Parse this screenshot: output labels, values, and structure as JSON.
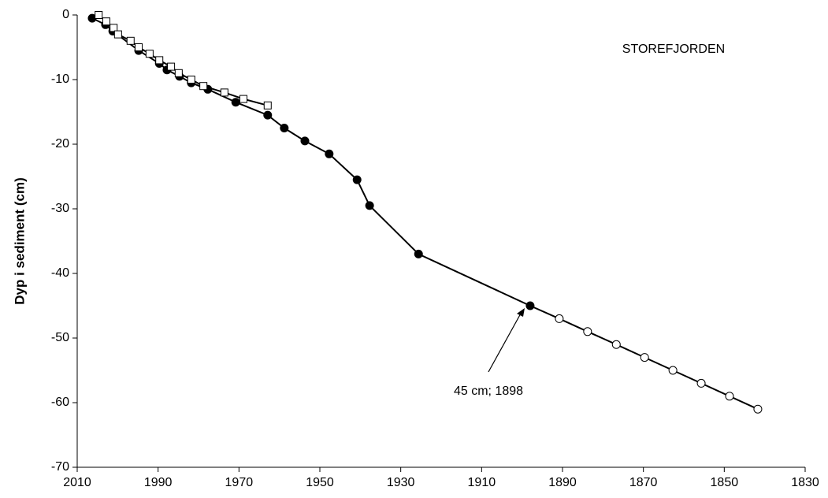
{
  "chart_data": {
    "type": "line",
    "ylabel": "Dyp i sediment (cm)",
    "annotations": [
      "STOREFJORDEN",
      "45 cm; 1898"
    ],
    "xlim": [
      2010,
      1830
    ],
    "xticks": [
      2010,
      1990,
      1970,
      1950,
      1930,
      1910,
      1890,
      1870,
      1850,
      1830
    ],
    "ylim": [
      -70,
      0
    ],
    "yticks": [
      0,
      -10,
      -20,
      -30,
      -40,
      -50,
      -60,
      -70
    ],
    "series": [
      {
        "marker": "circle",
        "color": "#000000",
        "point_colors": [
          "#000000",
          "#000000",
          "#000000",
          "#000000",
          "#000000",
          "#000000",
          "#000000",
          "#000000",
          "#000000",
          "#000000",
          "#000000",
          "#000000",
          "#000000",
          "#000000",
          "#000000",
          "#000000",
          "#000000",
          "#000000",
          "#ffffff",
          "#ffffff",
          "#ffffff",
          "#ffffff",
          "#ffffff",
          "#ffffff",
          "#ffffff",
          "#ffffff"
        ],
        "x": [
          2006.3,
          2003,
          2001.2,
          1994.8,
          1989.7,
          1987.8,
          1984.7,
          1981.8,
          1977.7,
          1970.8,
          1962.9,
          1958.8,
          1953.7,
          1947.7,
          1940.8,
          1937.7,
          1925.6,
          1898,
          1890.8,
          1883.8,
          1876.7,
          1869.7,
          1862.7,
          1855.7,
          1848.7,
          1841.7
        ],
        "values": [
          -0.5,
          -1.5,
          -2.5,
          -5.5,
          -7.5,
          -8.5,
          -9.5,
          -10.5,
          -11.5,
          -13.5,
          -15.5,
          -17.5,
          -19.5,
          -21.5,
          -25.5,
          -29.5,
          -37,
          -45,
          -47,
          -49,
          -51,
          -53,
          -55,
          -57,
          -59,
          -61
        ]
      },
      {
        "marker": "square",
        "color": "#000000",
        "point_colors": [
          "#ffffff",
          "#ffffff",
          "#ffffff",
          "#ffffff",
          "#ffffff",
          "#ffffff",
          "#ffffff",
          "#ffffff",
          "#ffffff",
          "#ffffff",
          "#ffffff",
          "#ffffff",
          "#ffffff",
          "#ffffff",
          "#ffffff"
        ],
        "x": [
          2004.7,
          2002.8,
          2001,
          1999.9,
          1996.8,
          1994.8,
          1992.1,
          1989.7,
          1986.8,
          1984.9,
          1981.8,
          1978.8,
          1973.6,
          1968.9,
          1962.9
        ],
        "values": [
          0,
          -1,
          -2,
          -3,
          -4,
          -5,
          -6,
          -7,
          -8,
          -9,
          -10,
          -11,
          -12,
          -13,
          -14
        ]
      }
    ]
  }
}
